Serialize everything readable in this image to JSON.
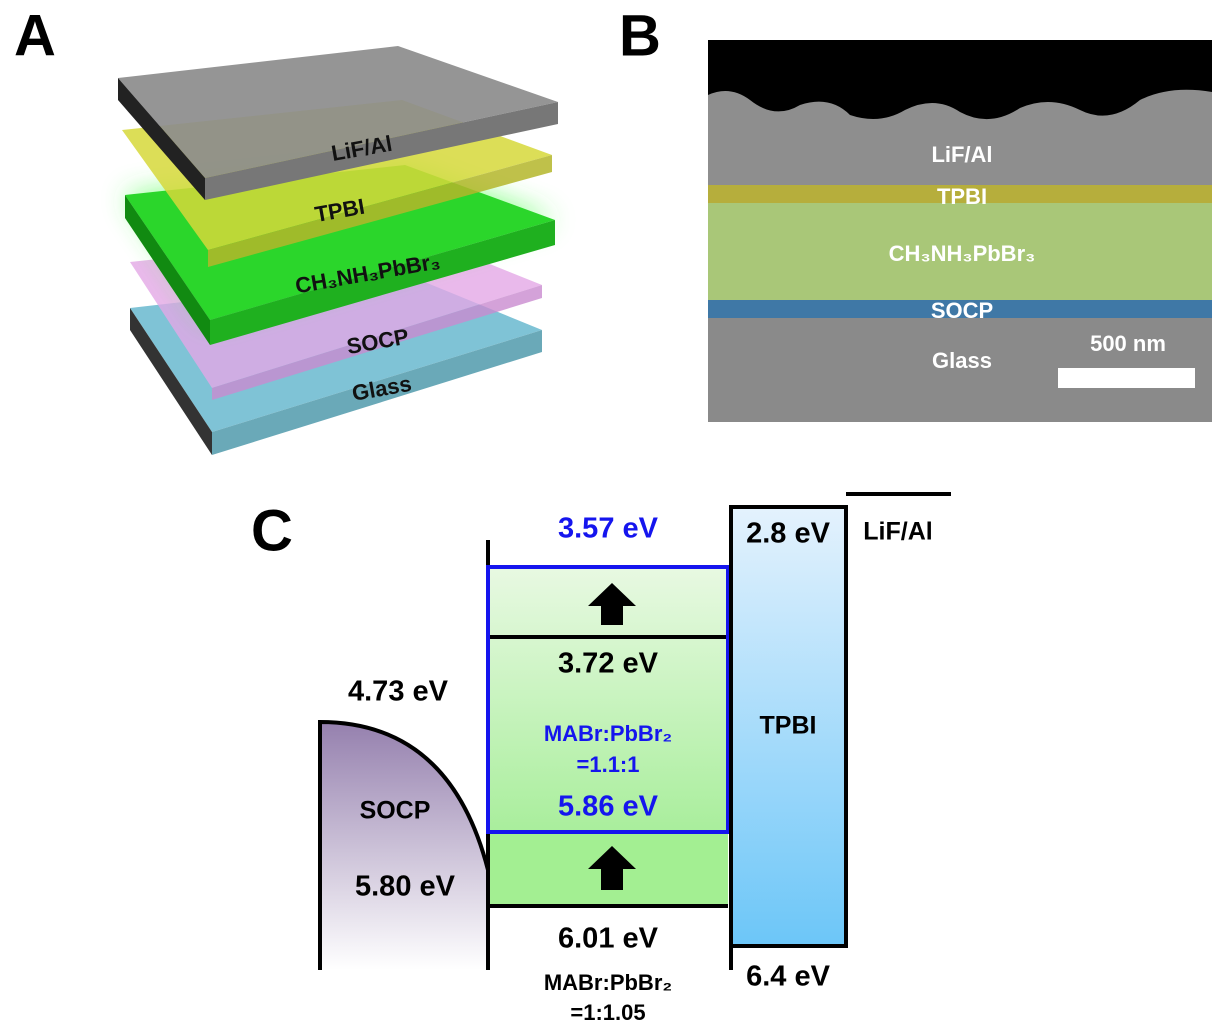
{
  "panel_a": {
    "label": "A",
    "layers": [
      "LiF/Al",
      "TPBI",
      "CH₃NH₃PbBr₃",
      "SOCP",
      "Glass"
    ]
  },
  "panel_b": {
    "label": "B",
    "layers": [
      "LiF/Al",
      "TPBI",
      "CH₃NH₃PbBr₃",
      "SOCP",
      "Glass"
    ],
    "scale_bar": "500 nm"
  },
  "panel_c": {
    "label": "C",
    "perovskite_high": {
      "lumo": "3.57 eV",
      "lumo_ref": "3.72 eV",
      "ratio_name": "MABr:PbBr₂",
      "ratio": "=1.1:1",
      "homo": "5.86 eV"
    },
    "perovskite_low": {
      "homo": "6.01 eV",
      "ratio_name": "MABr:PbBr₂",
      "ratio": "=1:1.05"
    },
    "tpbi": {
      "name": "TPBI",
      "lumo": "2.8 eV",
      "homo": "6.4 eV"
    },
    "cathode": "LiF/Al",
    "socp": {
      "name": "SOCP",
      "top": "4.73 eV",
      "bottom": "5.80 eV"
    }
  }
}
